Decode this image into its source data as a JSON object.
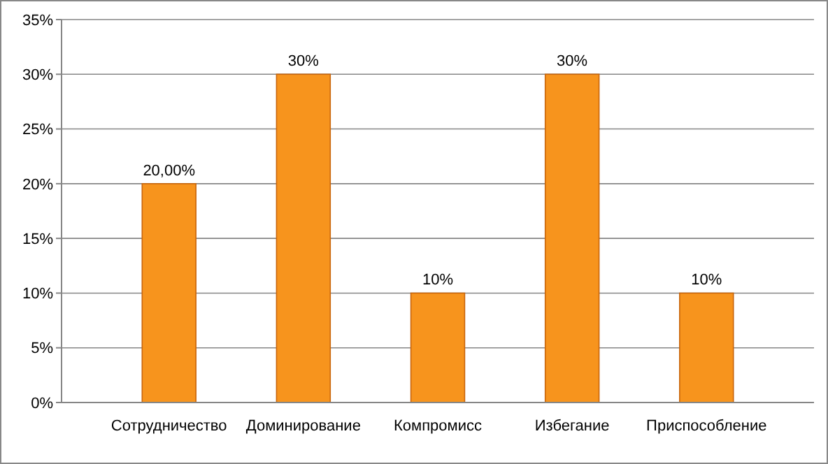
{
  "chart_data": {
    "type": "bar",
    "categories": [
      "Сотрудничество",
      "Доминирование",
      "Компромисс",
      "Избегание",
      "Приспособление"
    ],
    "values": [
      20,
      30,
      10,
      30,
      10
    ],
    "value_labels": [
      "20,00%",
      "30%",
      "10%",
      "30%",
      "10%"
    ],
    "color": "#f7941d",
    "ylim": [
      0,
      35
    ],
    "yticks": [
      {
        "value": 0,
        "label": "0%"
      },
      {
        "value": 5,
        "label": "5%"
      },
      {
        "value": 10,
        "label": "10%"
      },
      {
        "value": 15,
        "label": "15%"
      },
      {
        "value": 20,
        "label": "20%"
      },
      {
        "value": 25,
        "label": "25%"
      },
      {
        "value": 30,
        "label": "30%"
      },
      {
        "value": 35,
        "label": "35%"
      }
    ],
    "grid": "y"
  }
}
